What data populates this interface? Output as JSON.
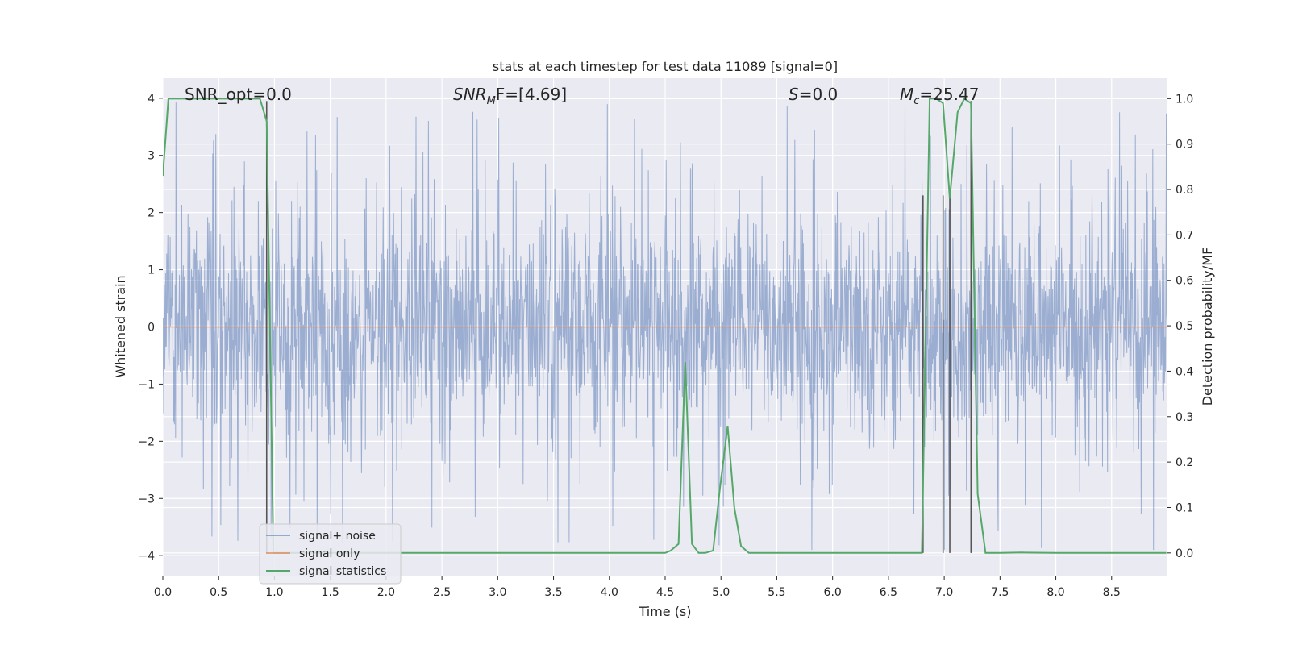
{
  "chart_data": {
    "type": "line",
    "title": "stats at each timestep for test data 11089 [signal=0]",
    "xlabel": "Time (s)",
    "ylabel": "Whitened strain",
    "ylabel_right": "Detection probability/MF",
    "xlim": [
      0.0,
      9.0
    ],
    "ylim": [
      -4.35,
      4.35
    ],
    "ylim_right": [
      -0.05,
      1.045
    ],
    "x_ticks": [
      "0.0",
      "0.5",
      "1.0",
      "1.5",
      "2.0",
      "2.5",
      "3.0",
      "3.5",
      "4.0",
      "4.5",
      "5.0",
      "5.5",
      "6.0",
      "6.5",
      "7.0",
      "7.5",
      "8.0",
      "8.5"
    ],
    "y_ticks": [
      "4",
      "3",
      "2",
      "1",
      "0",
      "−1",
      "−2",
      "−3",
      "−4"
    ],
    "y_ticks_right": [
      "1.0",
      "0.9",
      "0.8",
      "0.7",
      "0.6",
      "0.5",
      "0.4",
      "0.3",
      "0.2",
      "0.1",
      "0.0"
    ],
    "grid": true,
    "legend_position": "lower-left",
    "annotations": [
      {
        "id": "snr_opt",
        "text": "SNR_opt=0.0"
      },
      {
        "id": "snr_mf",
        "text_main": "SNR",
        "text_sub": "M",
        "text_rest": "F=[4.69]"
      },
      {
        "id": "s",
        "text_main": "S",
        "text_rest": "=0.0"
      },
      {
        "id": "mc",
        "text_main": "M",
        "text_sub": "c",
        "text_rest": "=25.47"
      }
    ],
    "series": [
      {
        "name": "signal+ noise",
        "color": "#4c72b0",
        "description_level": "dense whitened noise, mostly within ±2 with spikes to about ±4",
        "typical_envelope": [
          -2.0,
          2.3
        ],
        "peak_range": [
          -3.9,
          3.95
        ]
      },
      {
        "name": "signal only",
        "color": "#dd8452",
        "x": [
          0.0,
          9.0
        ],
        "y": [
          0.0,
          0.0
        ]
      },
      {
        "name": "signal statistics",
        "color": "#55a868",
        "axis": "right",
        "x": [
          0.0,
          0.05,
          0.1,
          0.5,
          0.87,
          0.93,
          0.99,
          1.05,
          1.1,
          1.5,
          2.0,
          2.2,
          2.5,
          3.0,
          3.5,
          4.0,
          4.5,
          4.55,
          4.62,
          4.68,
          4.74,
          4.8,
          4.86,
          4.93,
          4.99,
          5.06,
          5.12,
          5.18,
          5.25,
          5.5,
          6.0,
          6.5,
          6.8,
          6.87,
          6.93,
          6.99,
          7.05,
          7.12,
          7.18,
          7.24,
          7.3,
          7.37,
          7.5,
          7.7,
          8.0,
          8.5,
          8.99
        ],
        "y": [
          0.83,
          1.0,
          1.0,
          1.0,
          1.0,
          0.95,
          0.0,
          0.0,
          0.0,
          0.0,
          0.0,
          0.0,
          0.0,
          0.0,
          0.0,
          0.0,
          0.0,
          0.005,
          0.02,
          0.42,
          0.02,
          0.0,
          0.0,
          0.005,
          0.14,
          0.28,
          0.1,
          0.015,
          0.0,
          0.0,
          0.0,
          0.0,
          0.0,
          1.0,
          1.0,
          0.99,
          0.78,
          0.97,
          1.0,
          0.99,
          0.13,
          0.0,
          0.0,
          0.001,
          0.0,
          0.0,
          0.0
        ]
      }
    ],
    "vertical_markers": {
      "color": "#555555",
      "x": [
        0.93,
        6.81,
        6.99,
        7.05,
        7.24
      ],
      "y_top": [
        3.95,
        2.3,
        2.3,
        2.3,
        3.95
      ]
    }
  }
}
